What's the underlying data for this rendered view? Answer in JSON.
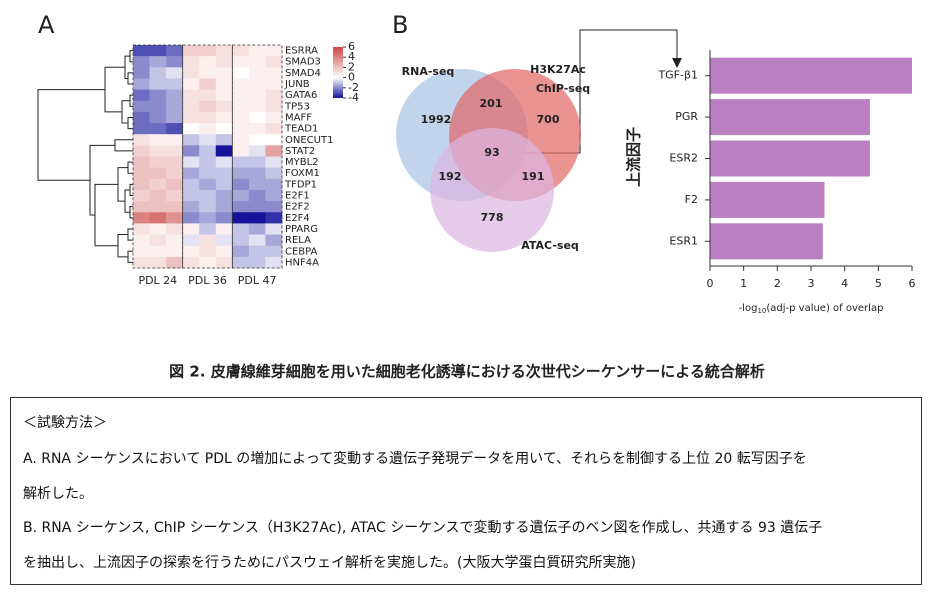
{
  "chart_data": [
    {
      "type": "heatmap",
      "panel_label": "A",
      "rows": [
        "ESRRA",
        "SMAD3",
        "SMAD4",
        "JUNB",
        "GATA6",
        "TP53",
        "MAFF",
        "TEAD1",
        "ONECUT1",
        "STAT2",
        "MYBL2",
        "FOXM1",
        "TFDP1",
        "E2F1",
        "E2F2",
        "E2F4",
        "PPARG",
        "RELA",
        "CEBPA",
        "HNF4A"
      ],
      "column_groups": [
        "PDL 24",
        "PDL 36",
        "PDL 47"
      ],
      "values": [
        [
          -3,
          -3,
          -2.5,
          1.5,
          1.5,
          1,
          1,
          0.5,
          0.5
        ],
        [
          -2,
          -1.5,
          -2,
          1,
          0.5,
          1,
          0.5,
          0.5,
          1
        ],
        [
          -2,
          -1,
          -0.5,
          1,
          0.5,
          0.5,
          0,
          0.5,
          0.5
        ],
        [
          -1.5,
          -1,
          -1,
          0.5,
          1.5,
          0.5,
          0.5,
          0.5,
          0.5
        ],
        [
          -2.5,
          -2,
          -1.5,
          1,
          1,
          0.5,
          0.5,
          0.5,
          1
        ],
        [
          -2,
          -2,
          -1.5,
          1,
          1.5,
          1,
          0.5,
          0.5,
          1
        ],
        [
          -2.5,
          -2,
          -1.5,
          1,
          1,
          0.5,
          0.5,
          0,
          0.5
        ],
        [
          -2.5,
          -2.5,
          -3,
          0,
          0.5,
          0,
          0.5,
          0.5,
          1
        ],
        [
          1,
          0.5,
          0.5,
          -1,
          -0.5,
          -1,
          0.5,
          0,
          0
        ],
        [
          1.5,
          1,
          1,
          -2,
          -1,
          -4,
          0.5,
          -0.5,
          3
        ],
        [
          2,
          1.5,
          1.5,
          -0.5,
          -1,
          -0.5,
          -1,
          -1,
          -0.5
        ],
        [
          2,
          2,
          1.5,
          -1.5,
          -1,
          -1,
          -1.5,
          -1.5,
          -1
        ],
        [
          2,
          1.5,
          2,
          -1,
          -1.5,
          -1,
          -2,
          -1.5,
          -1.5
        ],
        [
          1.5,
          2,
          1.5,
          -1,
          -1,
          -1.5,
          -1.5,
          -2,
          -1.5
        ],
        [
          2,
          2,
          2,
          -1.5,
          -1,
          -1.5,
          -2,
          -2,
          -2
        ],
        [
          4,
          4.5,
          3.5,
          -2,
          -1.5,
          -2,
          -4,
          -4,
          -3.5
        ],
        [
          1,
          0.5,
          1,
          0.5,
          -1,
          0.5,
          -1,
          -1.5,
          -0.5
        ],
        [
          0.5,
          1,
          0.5,
          -0.5,
          1,
          -0.5,
          -1,
          -0.5,
          -1.5
        ],
        [
          0.5,
          0.5,
          0.5,
          0.5,
          1,
          0.5,
          -1.5,
          -1,
          -1
        ],
        [
          1,
          1,
          2,
          1,
          0.5,
          1,
          -1,
          -1,
          -0.5
        ]
      ],
      "clim": [
        -4,
        6
      ],
      "cticks": [
        6,
        4,
        2,
        0,
        -2,
        -4
      ],
      "colors": {
        "low": "#14149a",
        "mid": "#ffffff",
        "high": "#cc4444"
      }
    },
    {
      "type": "venn",
      "panel_label": "B",
      "sets": [
        {
          "name": "RNA-seq",
          "color": "#a9c4e4"
        },
        {
          "name": [
            "H3K27Ac",
            "ChIP-seq"
          ],
          "color": "#e26a6a"
        },
        {
          "name": "ATAC-seq",
          "color": "#dcb6e0"
        }
      ],
      "regions": {
        "rna_only": 1992,
        "chip_only": 700,
        "atac_only": 778,
        "rna_chip": 201,
        "rna_atac": 192,
        "chip_atac": 191,
        "all": 93
      }
    },
    {
      "type": "hbar",
      "categories": [
        "TGF-β1",
        "PGR",
        "ESR2",
        "F2",
        "ESR1"
      ],
      "values": [
        6.0,
        4.75,
        4.75,
        3.4,
        3.35
      ],
      "color": "#b97fc0",
      "xlim": [
        0,
        6
      ],
      "xticks": [
        0,
        1,
        2,
        3,
        4,
        5,
        6
      ],
      "xlabel": [
        "-log",
        "10",
        "(adj-p value) of overlap"
      ],
      "ylabel": "上流因子"
    }
  ],
  "caption": "図 2. 皮膚線維芽細胞を用いた細胞老化誘導における次世代シーケンサーによる統合解析",
  "methods": {
    "heading": "＜試験方法＞",
    "lines": [
      "A.  RNA シーケンスにおいて PDL の増加によって変動する遺伝子発現データを用いて、それらを制御する上位 20 転写因子を",
      "解析した。",
      "B.  RNA シーケンス, ChIP シーケンス（H3K27Ac), ATAC シーケンスで変動する遺伝子のベン図を作成し、共通する 93 遺伝子",
      "を抽出し、上流因子の探索を行うためにパスウェイ解析を実施した。(大阪大学蛋白質研究所実施)"
    ]
  }
}
